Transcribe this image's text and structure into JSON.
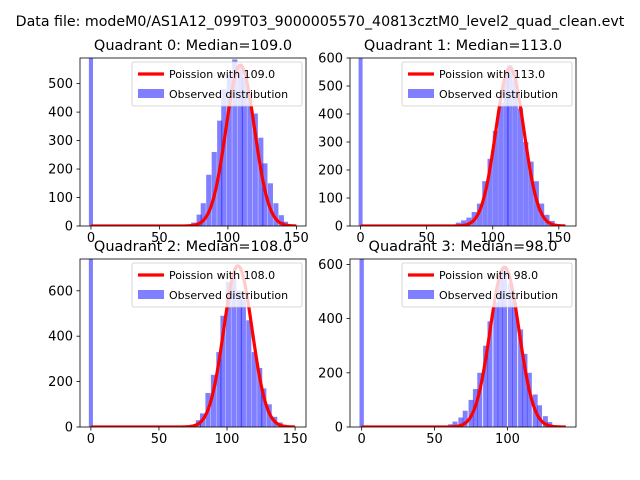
{
  "suptitle": "Data file: modeM0/AS1A12_099T03_9000005570_40813cztM0_level2_quad_clean.evt",
  "colors": {
    "hist": "#0000ff",
    "hist_opacity": 0.5,
    "fit": "#ff0000",
    "axis": "#000000"
  },
  "legend_labels": {
    "observed": "Observed distribution"
  },
  "chart_data": [
    {
      "type": "bar",
      "title": "Quadrant 0: Median=109.0",
      "median": 109.0,
      "legend_fit": "Poission with 109.0",
      "legend_position": "upper-right",
      "xlim": [
        -8,
        157
      ],
      "ylim": [
        0,
        590
      ],
      "xticks": [
        0,
        50,
        100,
        150
      ],
      "yticks": [
        0,
        100,
        200,
        300,
        400,
        500
      ],
      "spike": {
        "x": 0,
        "value": 590
      },
      "bin_width": 3.75,
      "bins": [
        [
          71,
          3
        ],
        [
          75,
          12
        ],
        [
          79,
          40
        ],
        [
          82,
          80
        ],
        [
          86,
          180
        ],
        [
          90,
          260
        ],
        [
          94,
          370
        ],
        [
          97,
          480
        ],
        [
          101,
          530
        ],
        [
          105,
          585
        ],
        [
          109,
          565
        ],
        [
          112,
          520
        ],
        [
          116,
          455
        ],
        [
          120,
          395
        ],
        [
          124,
          310
        ],
        [
          127,
          220
        ],
        [
          131,
          150
        ],
        [
          135,
          80
        ],
        [
          139,
          38
        ],
        [
          142,
          15
        ],
        [
          146,
          5
        ]
      ],
      "fit_peak": 565,
      "fit_sigma": 10.4,
      "fit_range": [
        0,
        150
      ]
    },
    {
      "type": "bar",
      "title": "Quadrant 1: Median=113.0",
      "median": 113.0,
      "legend_fit": "Poission with 113.0",
      "legend_position": "upper-right",
      "xlim": [
        -8,
        163
      ],
      "ylim": [
        0,
        600
      ],
      "xticks": [
        0,
        50,
        100,
        150
      ],
      "yticks": [
        0,
        100,
        200,
        300,
        400,
        500,
        600
      ],
      "spike": {
        "x": 0,
        "value": 600
      },
      "bin_width": 3.9,
      "bins": [
        [
          70,
          5
        ],
        [
          74,
          12
        ],
        [
          78,
          20
        ],
        [
          82,
          30
        ],
        [
          86,
          50
        ],
        [
          90,
          80
        ],
        [
          94,
          160
        ],
        [
          98,
          240
        ],
        [
          102,
          340
        ],
        [
          106,
          440
        ],
        [
          110,
          540
        ],
        [
          113,
          575
        ],
        [
          117,
          520
        ],
        [
          121,
          420
        ],
        [
          125,
          300
        ],
        [
          129,
          230
        ],
        [
          133,
          160
        ],
        [
          137,
          80
        ],
        [
          141,
          40
        ],
        [
          145,
          18
        ],
        [
          149,
          6
        ]
      ],
      "fit_peak": 565,
      "fit_sigma": 10.6,
      "fit_range": [
        0,
        155
      ]
    },
    {
      "type": "bar",
      "title": "Quadrant 2: Median=108.0",
      "median": 108.0,
      "legend_fit": "Poission with 108.0",
      "legend_position": "upper-right",
      "xlim": [
        -8,
        158
      ],
      "ylim": [
        0,
        740
      ],
      "xticks": [
        0,
        50,
        100,
        150
      ],
      "yticks": [
        0,
        200,
        400,
        600
      ],
      "spike": {
        "x": 0,
        "value": 740
      },
      "bin_width": 3.75,
      "bins": [
        [
          71,
          3
        ],
        [
          75,
          10
        ],
        [
          79,
          30
        ],
        [
          82,
          60
        ],
        [
          86,
          150
        ],
        [
          90,
          230
        ],
        [
          94,
          330
        ],
        [
          97,
          490
        ],
        [
          101,
          640
        ],
        [
          105,
          660
        ],
        [
          109,
          600
        ],
        [
          112,
          560
        ],
        [
          116,
          470
        ],
        [
          120,
          330
        ],
        [
          124,
          260
        ],
        [
          127,
          170
        ],
        [
          131,
          100
        ],
        [
          135,
          45
        ],
        [
          139,
          20
        ],
        [
          142,
          8
        ]
      ],
      "fit_peak": 710,
      "fit_sigma": 10.4,
      "fit_range": [
        0,
        150
      ]
    },
    {
      "type": "bar",
      "title": "Quadrant 3: Median=98.0",
      "median": 98.0,
      "legend_fit": "Poission with 98.0",
      "legend_position": "upper-right",
      "xlim": [
        -8,
        147
      ],
      "ylim": [
        0,
        620
      ],
      "xticks": [
        0,
        50,
        100
      ],
      "yticks": [
        0,
        200,
        400,
        600
      ],
      "spike": {
        "x": 0,
        "value": 620
      },
      "bin_width": 3.4,
      "bins": [
        [
          58,
          3
        ],
        [
          61,
          10
        ],
        [
          64,
          20
        ],
        [
          68,
          35
        ],
        [
          71,
          60
        ],
        [
          75,
          100
        ],
        [
          78,
          140
        ],
        [
          81,
          200
        ],
        [
          85,
          300
        ],
        [
          88,
          390
        ],
        [
          92,
          460
        ],
        [
          95,
          560
        ],
        [
          98,
          590
        ],
        [
          102,
          530
        ],
        [
          105,
          460
        ],
        [
          109,
          360
        ],
        [
          112,
          270
        ],
        [
          115,
          200
        ],
        [
          119,
          120
        ],
        [
          122,
          80
        ],
        [
          126,
          40
        ],
        [
          129,
          18
        ],
        [
          133,
          6
        ]
      ],
      "fit_peak": 590,
      "fit_sigma": 9.9,
      "fit_range": [
        0,
        140
      ]
    }
  ]
}
